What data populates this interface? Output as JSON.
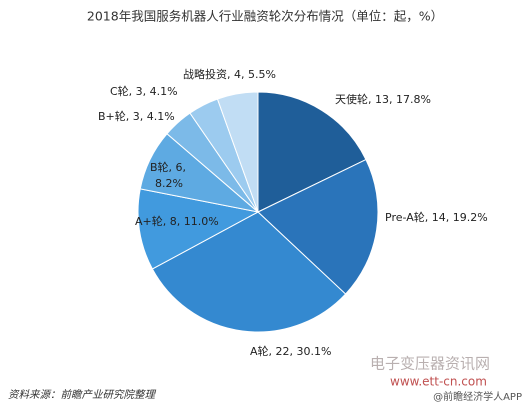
{
  "chart_data": {
    "type": "pie",
    "title": "2018年我国服务机器人行业融资轮次分布情况（单位：起，%）",
    "values": [
      13,
      14,
      22,
      8,
      6,
      3,
      3,
      4
    ],
    "value_labels": [
      "天使轮, 13, 17.8%",
      "Pre-A轮, 14, 19.2%",
      "A轮, 22, 30.1%",
      "A+轮, 8, 11.0%",
      [
        "B轮, 6,",
        "8.2%"
      ],
      "B+轮, 3, 4.1%",
      "C轮, 3, 4.1%",
      "战略投资, 4, 5.5%"
    ],
    "colors": [
      "#1f5e99",
      "#2a74ba",
      "#3489d0",
      "#419ade",
      "#5eaae2",
      "#7cbae8",
      "#9ccbef",
      "#c1ddf4"
    ],
    "source": "资料来源：前瞻产业研究院整理",
    "watermarks": [
      "@前瞻经济学人APP",
      "电子变压器资讯网",
      "www.ett-cn.com"
    ]
  }
}
